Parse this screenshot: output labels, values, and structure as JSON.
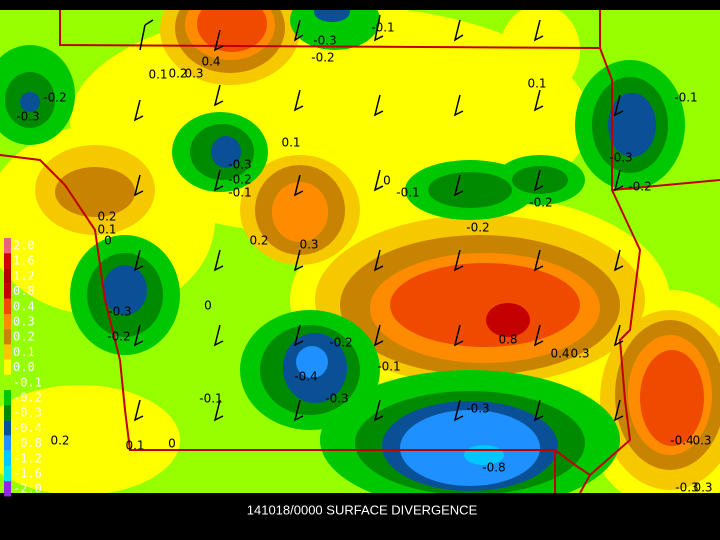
{
  "caption": "141018/0000 SURFACE DIVERGENCE",
  "legend": [
    {
      "label": "2.0",
      "color": "#e8647a"
    },
    {
      "label": "1.6",
      "color": "#d00000"
    },
    {
      "label": "1.2",
      "color": "#b00000"
    },
    {
      "label": "0.8",
      "color": "#c40000"
    },
    {
      "label": "0.4",
      "color": "#f04a00"
    },
    {
      "label": "0.3",
      "color": "#ff8c00"
    },
    {
      "label": "0.2",
      "color": "#c88400"
    },
    {
      "label": "0.1",
      "color": "#f5c800"
    },
    {
      "label": "0.0",
      "color": "#ffff00"
    },
    {
      "label": "-0.1",
      "color": "#96ff00"
    },
    {
      "label": "-0.2",
      "color": "#00c800"
    },
    {
      "label": "-0.3",
      "color": "#008a00"
    },
    {
      "label": "-0.4",
      "color": "#0a5096"
    },
    {
      "label": "-0.8",
      "color": "#1e90ff"
    },
    {
      "label": "-1.2",
      "color": "#00c8ff"
    },
    {
      "label": "-1.6",
      "color": "#00e6e6"
    },
    {
      "label": "-2.0",
      "color": "#8c28e6"
    }
  ],
  "contour_labels": [
    "0.4",
    "-0.3",
    "-0.2",
    "0.1",
    "0.2",
    "0.3",
    "-0.3",
    "-0.1",
    "-0.2",
    "0.1",
    "-0.1",
    "0.1",
    "-0.3",
    "-0.2",
    "-0.1",
    "0",
    "-0.1",
    "-0.3",
    "-0.2",
    "-0.2",
    "-0.2",
    "0.2",
    "0.1",
    "0",
    "0.2",
    "0.3",
    "0",
    "-0.3",
    "-0.2",
    "0.8",
    "0.4",
    "0.3",
    "-0.2",
    "-0.1",
    "-0.4",
    "-0.3",
    "-0.1",
    "-0.3",
    "0.2",
    "0.1",
    "0",
    "-0.4",
    "0.3",
    "-0.8",
    "-0.3",
    "0.3"
  ]
}
